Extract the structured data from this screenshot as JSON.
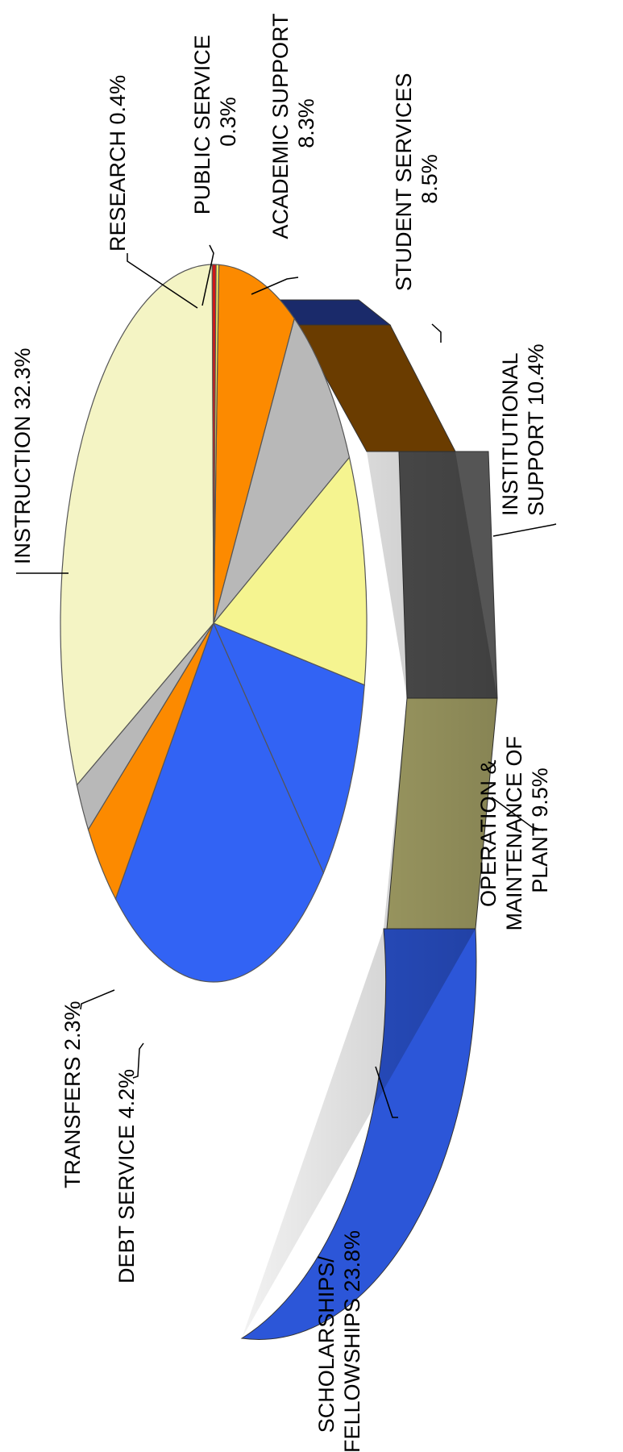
{
  "chart_data": {
    "type": "pie",
    "title": "",
    "slices": [
      {
        "label": "ACADEMIC SUPPORT",
        "value": 8.3,
        "value_label": "8.3%",
        "lines": [
          "ACADEMIC SUPPORT",
          "8.3%"
        ],
        "color": "#FC8A00",
        "side_color": "#A85C00"
      },
      {
        "label": "STUDENT SERVICES",
        "value": 8.5,
        "value_label": "8.5%",
        "lines": [
          "STUDENT SERVICES",
          "8.5%"
        ],
        "color": "#B8B8B8",
        "side_color": "#5A5A5A"
      },
      {
        "label": "INSTITUTIONAL SUPPORT",
        "value": 10.4,
        "value_label": "10.4%",
        "lines": [
          "INSTITUTIONAL",
          "SUPPORT  10.4%"
        ],
        "color": "#F5F490",
        "side_color": "#A8A462"
      },
      {
        "label": "OPERATION & MAINTENANCE OF PLANT",
        "value": 9.5,
        "value_label": "9.5%",
        "lines": [
          "OPERATION &",
          "MAINTENANCE OF",
          "PLANT  9.5%"
        ],
        "color": "#3263F4",
        "side_color": "#2650D6"
      },
      {
        "label": "SCHOLARSHIPS/ FELLOWSHIPS",
        "value": 23.8,
        "value_label": "23.8%",
        "lines": [
          "SCHOLARSHIPS/",
          "FELLOWSHIPS  23.8%"
        ],
        "color": "#3263F4",
        "side_color": "#2650D6"
      },
      {
        "label": "DEBT SERVICE",
        "value": 4.2,
        "value_label": "4.2%",
        "lines": [
          "DEBT SERVICE   4.2%"
        ],
        "color": "#FC8A00",
        "side_color": "#A85C00"
      },
      {
        "label": "TRANSFERS",
        "value": 2.3,
        "value_label": "2.3%",
        "lines": [
          "TRANSFERS  2.3%"
        ],
        "color": "#B8B8B8",
        "side_color": "#5A5A5A"
      },
      {
        "label": "INSTRUCTION",
        "value": 32.3,
        "value_label": "32.3%",
        "lines": [
          "INSTRUCTION  32.3%"
        ],
        "color": "#F4F4C4",
        "side_color": "#C8C8A0"
      },
      {
        "label": "RESEARCH",
        "value": 0.4,
        "value_label": "0.4%",
        "lines": [
          "RESEARCH 0.4%"
        ],
        "color": "#D01818",
        "side_color": "#901010"
      },
      {
        "label": "PUBLIC SERVICE",
        "value": 0.3,
        "value_label": "0.3%",
        "lines": [
          "PUBLIC SERVICE",
          "0.3%"
        ],
        "color": "#F0E860",
        "side_color": "#B0A840"
      }
    ],
    "legend": "none",
    "grid": false
  }
}
